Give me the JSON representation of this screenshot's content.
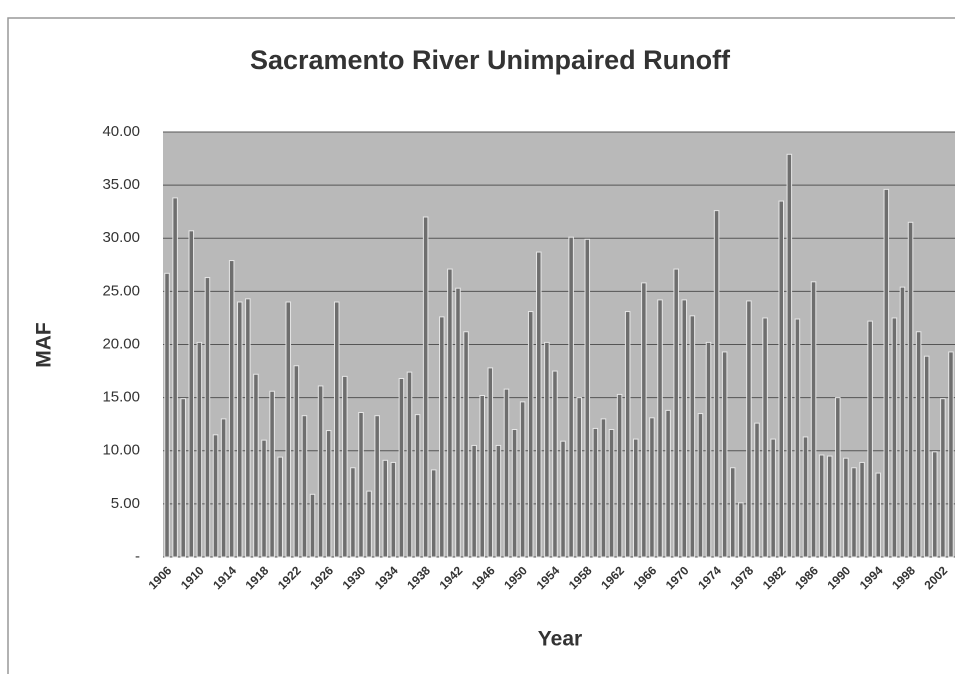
{
  "chart_data": {
    "type": "bar",
    "title": "Sacramento River Unimpaired Runoff",
    "y_label": "MAF",
    "x_label": "Year",
    "categories": [
      "1906",
      null,
      null,
      null,
      "1910",
      null,
      null,
      null,
      "1914",
      null,
      null,
      null,
      "1918",
      null,
      null,
      null,
      "1922",
      null,
      null,
      null,
      "1926",
      null,
      null,
      null,
      "1930",
      null,
      null,
      null,
      "1934",
      null,
      null,
      null,
      "1938",
      null,
      null,
      null,
      "1942",
      null,
      null,
      null,
      "1946",
      null,
      null,
      null,
      "1950",
      null,
      null,
      null,
      "1954",
      null,
      null,
      null,
      "1958",
      null,
      null,
      null,
      "1962",
      null,
      null,
      null,
      "1966",
      null,
      null,
      null,
      "1970",
      null,
      null,
      null,
      "1974",
      null,
      null,
      null,
      "1978",
      null,
      null,
      null,
      "1982",
      null,
      null,
      null,
      "1986",
      null,
      null,
      null,
      "1990",
      null,
      null,
      null,
      "1994",
      null,
      null,
      null,
      "1998",
      null,
      null,
      null,
      "2002",
      null
    ],
    "values": [
      26.7,
      33.8,
      14.9,
      30.7,
      20.2,
      26.3,
      11.5,
      13.0,
      27.9,
      24.0,
      24.3,
      17.2,
      11.0,
      15.6,
      9.4,
      24.0,
      18.0,
      13.3,
      5.9,
      16.1,
      11.9,
      24.0,
      17.0,
      8.4,
      13.6,
      6.2,
      13.3,
      9.1,
      8.9,
      16.8,
      17.4,
      13.4,
      32.0,
      8.2,
      22.6,
      27.1,
      25.3,
      21.2,
      10.5,
      15.2,
      17.8,
      10.5,
      15.8,
      12.0,
      14.6,
      23.1,
      28.7,
      20.2,
      17.5,
      10.9,
      30.1,
      15.0,
      29.9,
      12.1,
      13.0,
      12.0,
      15.3,
      23.1,
      11.1,
      25.8,
      13.1,
      24.2,
      13.8,
      27.1,
      24.2,
      22.7,
      13.5,
      20.2,
      32.6,
      19.3,
      8.4,
      5.1,
      24.1,
      12.6,
      22.5,
      11.1,
      33.5,
      37.9,
      22.4,
      11.3,
      25.9,
      9.6,
      9.5,
      15.0,
      9.3,
      8.4,
      8.9,
      22.2,
      7.9,
      34.6,
      22.5,
      25.4,
      31.5,
      21.2,
      18.9,
      9.9,
      14.9,
      19.3
    ],
    "color": "#6e6e6e",
    "ylim": [
      0,
      40
    ],
    "yticks": [
      {
        "value": 0,
        "label": "-"
      },
      {
        "value": 5,
        "label": "5.00"
      },
      {
        "value": 10,
        "label": "10.00"
      },
      {
        "value": 15,
        "label": "15.00"
      },
      {
        "value": 20,
        "label": "20.00"
      },
      {
        "value": 25,
        "label": "25.00"
      },
      {
        "value": 30,
        "label": "30.00"
      },
      {
        "value": 35,
        "label": "35.00"
      },
      {
        "value": 40,
        "label": "40.00"
      }
    ],
    "grid": true
  }
}
